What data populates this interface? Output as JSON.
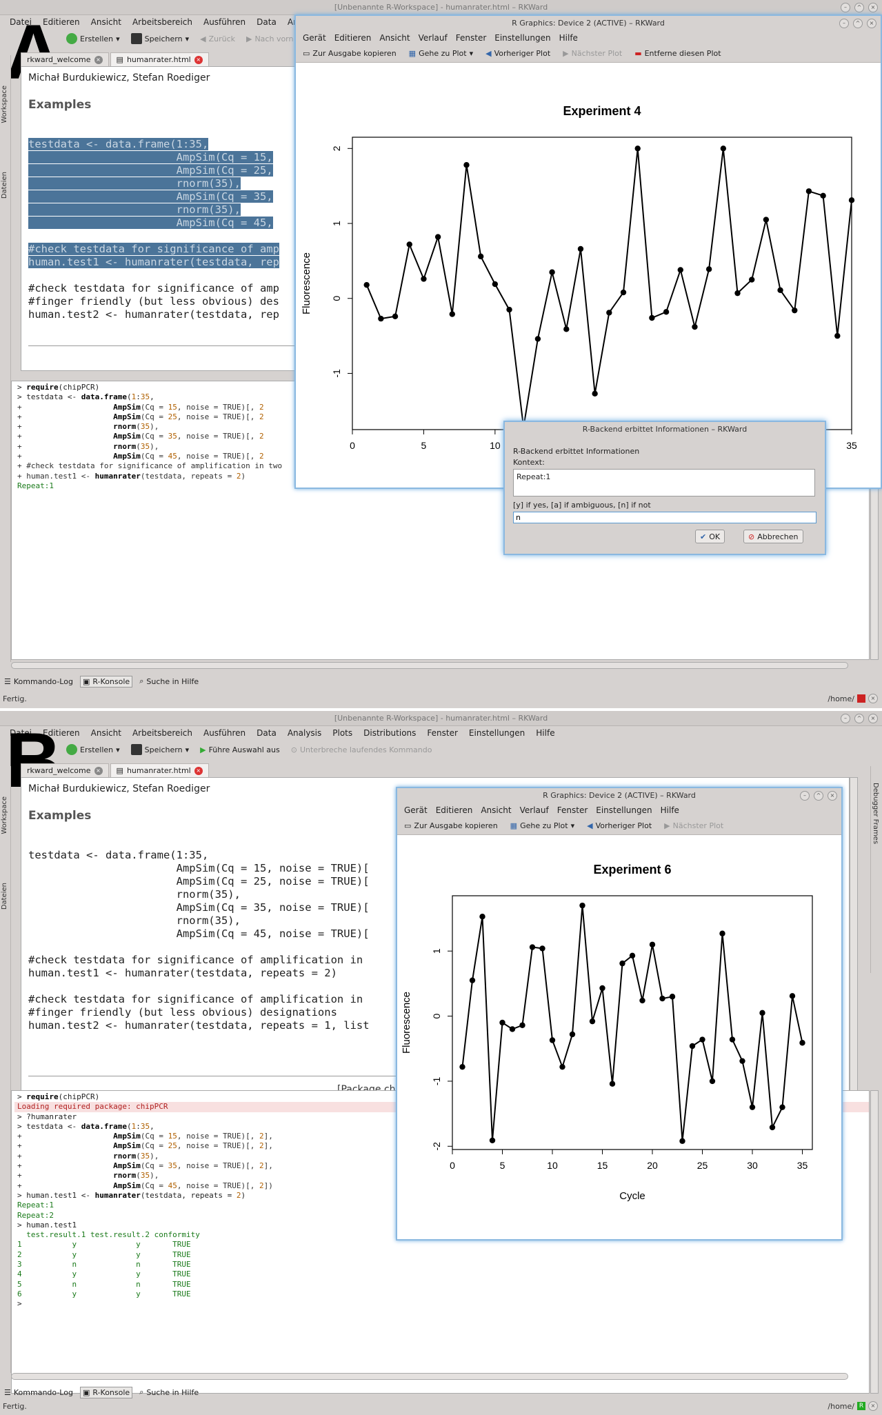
{
  "panelA": {
    "label": "A",
    "title": "[Unbenannte R-Workspace] - humanrater.html – RKWard",
    "menu": [
      "Datei",
      "Editieren",
      "Ansicht",
      "Arbeitsbereich",
      "Ausführen",
      "Data",
      "Analy"
    ],
    "toolbar": {
      "new": "Erstellen",
      "save": "Speichern",
      "back": "Zurück",
      "forward": "Nach vorn"
    },
    "side_tabs": [
      "Workspace",
      "Dateien"
    ],
    "tabs": [
      "rkward_welcome",
      "humanrater.html"
    ],
    "doc": {
      "authors": "Michał Burdukiewicz, Stefan Roediger",
      "heading": "Examples",
      "code": [
        "testdata <- data.frame(1:35,",
        "                       AmpSim(Cq = 15,",
        "                       AmpSim(Cq = 25,",
        "                       rnorm(35),",
        "                       AmpSim(Cq = 35,",
        "                       rnorm(35),",
        "                       AmpSim(Cq = 45,",
        "",
        "#check testdata for significance of amp",
        "human.test1 <- humanrater(testdata, rep",
        "",
        "#check testdata for significance of amp",
        "#finger friendly (but less obvious) des",
        "human.test2 <- humanrater(testdata, rep"
      ]
    },
    "console": [
      {
        "k": "p",
        "t": "> ",
        "b": "require",
        "r": "(chipPCR)"
      },
      {
        "k": "p",
        "t": "> testdata <- ",
        "b": "data.frame",
        "r": "(1:35,"
      },
      {
        "k": "c",
        "t": "+                    ",
        "b": "AmpSim",
        "r": "(Cq = 15, noise = TRUE)[, 2"
      },
      {
        "k": "c",
        "t": "+                    ",
        "b": "AmpSim",
        "r": "(Cq = 25, noise = TRUE)[, 2"
      },
      {
        "k": "c",
        "t": "+                    ",
        "b": "rnorm",
        "r": "(35),"
      },
      {
        "k": "c",
        "t": "+                    ",
        "b": "AmpSim",
        "r": "(Cq = 35, noise = TRUE)[, 2"
      },
      {
        "k": "c",
        "t": "+                    ",
        "b": "rnorm",
        "r": "(35),"
      },
      {
        "k": "c",
        "t": "+                    ",
        "b": "AmpSim",
        "r": "(Cq = 45, noise = TRUE)[, 2"
      },
      {
        "k": "c",
        "t": "+ #check testdata for significance of amplification in two",
        "b": "",
        "r": ""
      },
      {
        "k": "c",
        "t": "+ human.test1 <- ",
        "b": "humanrater",
        "r": "(testdata, repeats = 2)"
      },
      {
        "k": "o",
        "t": "Repeat:1",
        "b": "",
        "r": ""
      }
    ],
    "bottom_tabs": [
      "Kommando-Log",
      "R-Konsole",
      "Suche in Hilfe"
    ],
    "status": "Fertig.",
    "status_right": "/home/",
    "graphics": {
      "title": "R Graphics: Device 2 (ACTIVE) – RKWard",
      "menu": [
        "Gerät",
        "Editieren",
        "Ansicht",
        "Verlauf",
        "Fenster",
        "Einstellungen",
        "Hilfe"
      ],
      "tools": [
        "Zur Ausgabe kopieren",
        "Gehe zu Plot",
        "Vorheriger Plot",
        "Nächster Plot",
        "Entferne diesen Plot"
      ]
    },
    "dialog": {
      "title": "R-Backend erbittet Informationen – RKWard",
      "heading": "R-Backend erbittet Informationen",
      "context_label": "Kontext:",
      "context": "Repeat:1",
      "prompt": "[y] if yes, [a] if ambiguous, [n] if not",
      "value": "n",
      "ok": "OK",
      "cancel": "Abbrechen"
    }
  },
  "panelB": {
    "label": "B",
    "title": "[Unbenannte R-Workspace] - humanrater.html – RKWard",
    "menu": [
      "Datei",
      "Editieren",
      "Ansicht",
      "Arbeitsbereich",
      "Ausführen",
      "Data",
      "Analysis",
      "Plots",
      "Distributions",
      "Fenster",
      "Einstellungen",
      "Hilfe"
    ],
    "toolbar": {
      "new": "Erstellen",
      "save": "Speichern",
      "run": "Führe Auswahl aus",
      "stop": "Unterbreche laufendes Kommando"
    },
    "side_tabs": [
      "Workspace",
      "Dateien"
    ],
    "right_tabs": [
      "Debugger Frames"
    ],
    "tabs": [
      "rkward_welcome",
      "humanrater.html"
    ],
    "doc": {
      "authors": "Michał Burdukiewicz, Stefan Roediger",
      "heading": "Examples",
      "code": [
        "testdata <- data.frame(1:35,",
        "                       AmpSim(Cq = 15, noise = TRUE)[",
        "                       AmpSim(Cq = 25, noise = TRUE)[",
        "                       rnorm(35),",
        "                       AmpSim(Cq = 35, noise = TRUE)[",
        "                       rnorm(35),",
        "                       AmpSim(Cq = 45, noise = TRUE)[",
        "",
        "#check testdata for significance of amplification in",
        "human.test1 <- humanrater(testdata, repeats = 2)",
        "",
        "#check testdata for significance of amplification in",
        "#finger friendly (but less obvious) designations",
        "human.test2 <- humanrater(testdata, repeats = 1, list"
      ],
      "footer": "[Package ch"
    },
    "console": [
      {
        "k": "p",
        "t": "> ",
        "b": "require",
        "r": "(chipPCR)"
      },
      {
        "k": "w",
        "t": "Loading required package: chipPCR",
        "b": "",
        "r": ""
      },
      {
        "k": "p",
        "t": "> ?humanrater",
        "b": "",
        "r": ""
      },
      {
        "k": "p",
        "t": "> testdata <- ",
        "b": "data.frame",
        "r": "(1:35,"
      },
      {
        "k": "c",
        "t": "+                    ",
        "b": "AmpSim",
        "r": "(Cq = 15, noise = TRUE)[, 2],"
      },
      {
        "k": "c",
        "t": "+                    ",
        "b": "AmpSim",
        "r": "(Cq = 25, noise = TRUE)[, 2],"
      },
      {
        "k": "c",
        "t": "+                    ",
        "b": "rnorm",
        "r": "(35),"
      },
      {
        "k": "c",
        "t": "+                    ",
        "b": "AmpSim",
        "r": "(Cq = 35, noise = TRUE)[, 2],"
      },
      {
        "k": "c",
        "t": "+                    ",
        "b": "rnorm",
        "r": "(35),"
      },
      {
        "k": "c",
        "t": "+                    ",
        "b": "AmpSim",
        "r": "(Cq = 45, noise = TRUE)[, 2])"
      },
      {
        "k": "p",
        "t": "> human.test1 <- ",
        "b": "humanrater",
        "r": "(testdata, repeats = 2)"
      },
      {
        "k": "o",
        "t": "Repeat:1",
        "b": "",
        "r": ""
      },
      {
        "k": "o",
        "t": "Repeat:2",
        "b": "",
        "r": ""
      },
      {
        "k": "p",
        "t": "> human.test1",
        "b": "",
        "r": ""
      },
      {
        "k": "o",
        "t": "  test.result.1 test.result.2 conformity",
        "b": "",
        "r": ""
      },
      {
        "k": "o",
        "t": "1           y             y       TRUE",
        "b": "",
        "r": ""
      },
      {
        "k": "o",
        "t": "2           y             y       TRUE",
        "b": "",
        "r": ""
      },
      {
        "k": "o",
        "t": "3           n             n       TRUE",
        "b": "",
        "r": ""
      },
      {
        "k": "o",
        "t": "4           y             y       TRUE",
        "b": "",
        "r": ""
      },
      {
        "k": "o",
        "t": "5           n             n       TRUE",
        "b": "",
        "r": ""
      },
      {
        "k": "o",
        "t": "6           y             y       TRUE",
        "b": "",
        "r": ""
      },
      {
        "k": "p",
        "t": "> ",
        "b": "",
        "r": ""
      }
    ],
    "bottom_tabs": [
      "Kommando-Log",
      "R-Konsole",
      "Suche in Hilfe"
    ],
    "status": "Fertig.",
    "status_right": "/home/",
    "graphics": {
      "title": "R Graphics: Device 2 (ACTIVE) – RKWard",
      "menu": [
        "Gerät",
        "Editieren",
        "Ansicht",
        "Verlauf",
        "Fenster",
        "Einstellungen",
        "Hilfe"
      ],
      "tools": [
        "Zur Ausgabe kopieren",
        "Gehe zu Plot",
        "Vorheriger Plot",
        "Nächster Plot"
      ]
    }
  },
  "chart_data": [
    {
      "type": "line",
      "title": "Experiment 4",
      "xlabel": "",
      "ylabel": "Fluorescence",
      "xlim": [
        0,
        35
      ],
      "ylim": [
        -1.75,
        2.15
      ],
      "x_ticks": [
        0,
        5,
        10,
        35
      ],
      "y_ticks": [
        -1,
        0,
        1,
        2
      ],
      "x": [
        1,
        2,
        3,
        4,
        5,
        6,
        7,
        8,
        9,
        10,
        11,
        12,
        13,
        14,
        15,
        16,
        17,
        18,
        19,
        20,
        21,
        22,
        23,
        24,
        25,
        26,
        27,
        28,
        29,
        30,
        31,
        32,
        33,
        34,
        35
      ],
      "values": [
        0.18,
        -0.27,
        -0.24,
        0.72,
        0.26,
        0.82,
        -0.21,
        1.78,
        0.56,
        0.19,
        -0.15,
        -1.72,
        -0.54,
        0.35,
        -0.41,
        0.66,
        -1.27,
        -0.19,
        0.08,
        2.0,
        -0.26,
        -0.18,
        0.38,
        -0.38,
        0.39,
        2.0,
        0.07,
        0.25,
        1.05,
        0.11,
        -0.16,
        1.43,
        1.37,
        -0.5,
        1.31
      ]
    },
    {
      "type": "line",
      "title": "Experiment 6",
      "xlabel": "Cycle",
      "ylabel": "Fluorescence",
      "xlim": [
        0,
        36
      ],
      "ylim": [
        -2.05,
        1.85
      ],
      "x_ticks": [
        0,
        5,
        10,
        15,
        20,
        25,
        30,
        35
      ],
      "y_ticks": [
        -2,
        -1,
        0,
        1
      ],
      "x": [
        1,
        2,
        3,
        4,
        5,
        6,
        7,
        8,
        9,
        10,
        11,
        12,
        13,
        14,
        15,
        16,
        17,
        18,
        19,
        20,
        21,
        22,
        23,
        24,
        25,
        26,
        27,
        28,
        29,
        30,
        31,
        32,
        33,
        34,
        35
      ],
      "values": [
        -0.78,
        0.55,
        1.53,
        -1.91,
        -0.1,
        -0.2,
        -0.14,
        1.06,
        1.04,
        -0.37,
        -0.78,
        -0.28,
        1.7,
        -0.08,
        0.43,
        -1.04,
        0.81,
        0.93,
        0.24,
        1.1,
        0.27,
        0.3,
        -1.92,
        -0.46,
        -0.36,
        -1.0,
        1.27,
        -0.36,
        -0.69,
        -1.4,
        0.05,
        -1.71,
        -1.4,
        0.31,
        -0.41
      ]
    }
  ]
}
